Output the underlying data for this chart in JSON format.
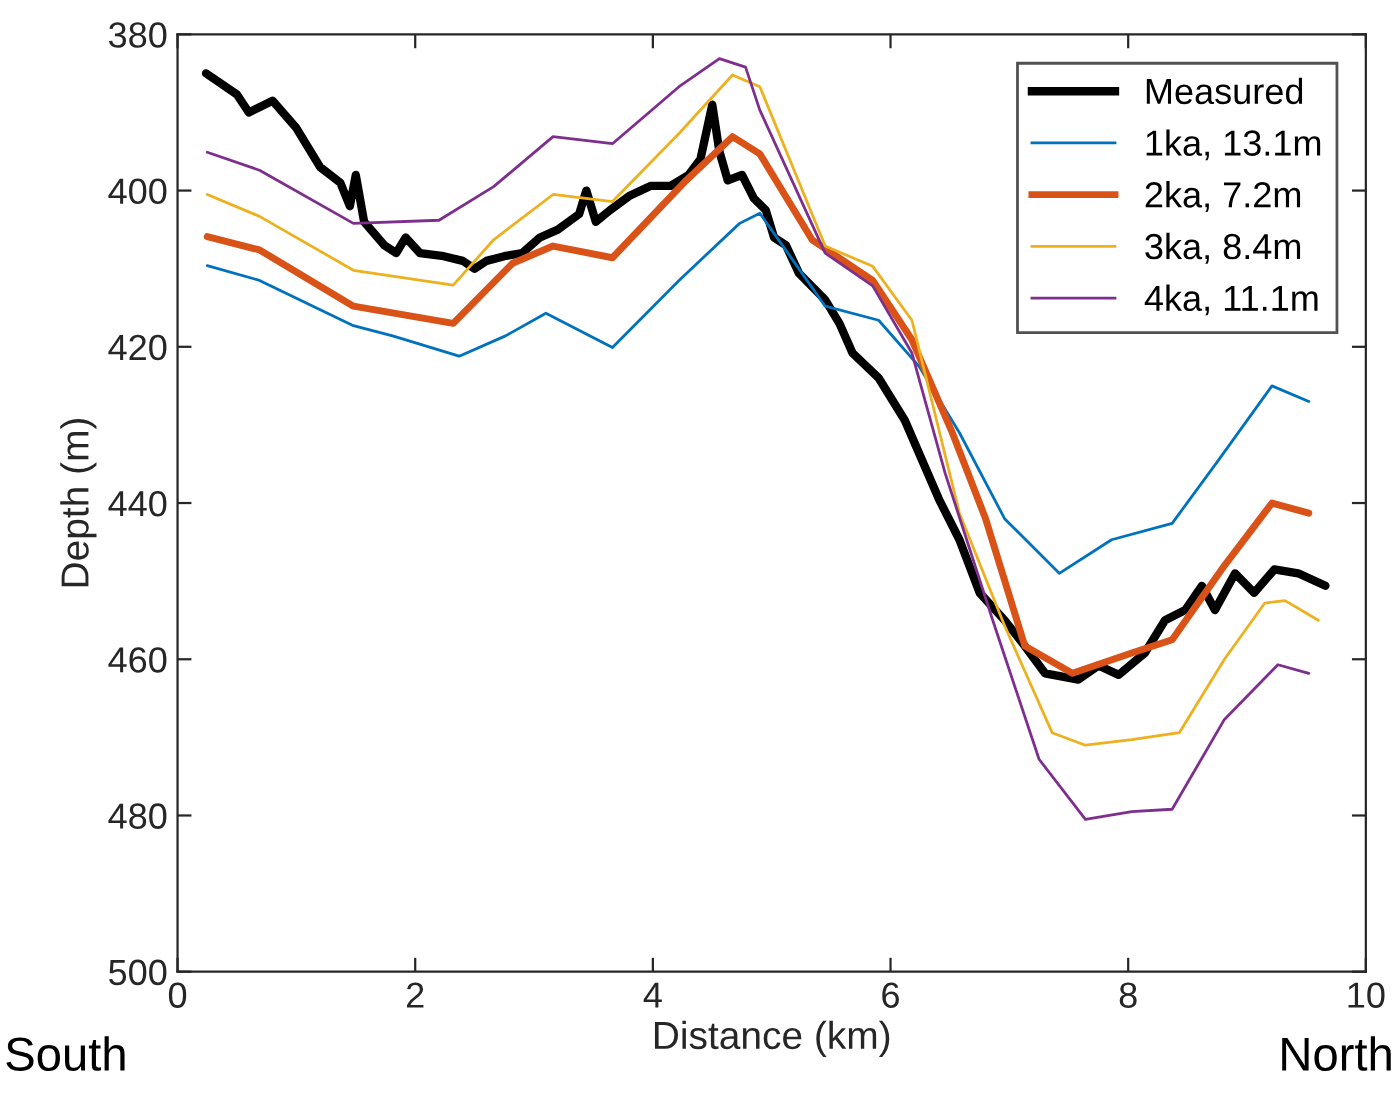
{
  "chart_data": {
    "type": "line",
    "xlabel": "Distance (km)",
    "ylabel": "Depth (m)",
    "xlim": [
      0,
      10
    ],
    "ylim": [
      500,
      380
    ],
    "xticks": [
      0,
      2,
      4,
      6,
      8,
      10
    ],
    "yticks": [
      380,
      400,
      420,
      440,
      460,
      480,
      500
    ],
    "grid": false,
    "legend": "top right",
    "annotations": [
      "South",
      "North"
    ],
    "series": [
      {
        "name": "Measured",
        "color": "#000000",
        "x": [
          0.24,
          0.5,
          0.6,
          0.8,
          1.0,
          1.2,
          1.37,
          1.45,
          1.5,
          1.57,
          1.74,
          1.84,
          1.92,
          2.04,
          2.24,
          2.4,
          2.5,
          2.6,
          2.75,
          2.9,
          3.05,
          3.2,
          3.38,
          3.44,
          3.52,
          3.64,
          3.8,
          3.98,
          4.15,
          4.3,
          4.4,
          4.5,
          4.56,
          4.63,
          4.75,
          4.85,
          4.95,
          5.02,
          5.12,
          5.23,
          5.45,
          5.57,
          5.68,
          5.9,
          6.12,
          6.41,
          6.58,
          6.75,
          6.96,
          7.13,
          7.3,
          7.58,
          7.75,
          7.92,
          8.14,
          8.31,
          8.48,
          8.62,
          8.73,
          8.9,
          9.06,
          9.23,
          9.43,
          9.66
        ],
        "values": [
          385,
          387.7,
          390,
          388.5,
          392,
          397,
          399,
          402,
          398,
          404,
          407,
          408,
          406,
          408,
          408.4,
          409,
          410,
          409,
          408.4,
          408,
          406,
          405,
          403,
          400,
          404,
          402.5,
          400.7,
          399.4,
          399.4,
          398,
          396,
          389,
          395,
          398.7,
          398,
          401,
          402.5,
          406,
          407,
          410.6,
          414,
          417,
          420.8,
          424,
          429.4,
          439.6,
          444.7,
          451.5,
          455,
          458.3,
          461.8,
          462.6,
          460.8,
          462,
          459.2,
          455,
          453.7,
          450.6,
          453.7,
          449,
          451.5,
          448.5,
          449,
          450.6
        ]
      },
      {
        "name": "1ka, 13.1m",
        "color": "#0072bd",
        "x": [
          0.25,
          0.69,
          1.48,
          1.81,
          2.37,
          2.76,
          3.1,
          3.66,
          4.22,
          4.73,
          4.9,
          5.45,
          5.9,
          6.24,
          6.58,
          6.96,
          7.42,
          7.86,
          8.37,
          8.76,
          9.21,
          9.52
        ],
        "values": [
          409.6,
          411.5,
          417.3,
          418.6,
          421.2,
          418.6,
          415.7,
          420.1,
          411.5,
          404.2,
          402.9,
          414.8,
          416.6,
          422.5,
          431,
          442,
          449,
          444.7,
          442.6,
          434.5,
          425,
          427
        ]
      },
      {
        "name": "2ka, 7.2m",
        "color": "#d95319",
        "x": [
          0.25,
          0.69,
          1.48,
          2.32,
          2.82,
          3.16,
          3.66,
          4.28,
          4.67,
          4.9,
          5.34,
          5.85,
          6.18,
          6.52,
          6.8,
          7.13,
          7.53,
          8.03,
          8.37,
          8.81,
          9.21,
          9.52
        ],
        "values": [
          405.9,
          407.6,
          414.8,
          417,
          409.3,
          407.1,
          408.6,
          398.7,
          393.1,
          395.3,
          406.3,
          411.5,
          419.1,
          431,
          442,
          458.3,
          461.8,
          459.2,
          457.5,
          448,
          440,
          441.3
        ]
      },
      {
        "name": "3ka, 8.4m",
        "color": "#edb120",
        "x": [
          0.25,
          0.69,
          1.48,
          2.32,
          2.66,
          3.16,
          3.66,
          4.22,
          4.67,
          4.9,
          5.45,
          5.85,
          6.18,
          6.58,
          6.96,
          7.36,
          7.64,
          8.03,
          8.43,
          8.81,
          9.15,
          9.32,
          9.6
        ],
        "values": [
          400.5,
          403.3,
          410.2,
          412.1,
          406.3,
          400.5,
          401.4,
          392.7,
          385.2,
          386.7,
          407.1,
          409.7,
          416.6,
          441.3,
          455.7,
          469.4,
          471,
          470.3,
          469.4,
          460,
          452.8,
          452.5,
          455
        ]
      },
      {
        "name": "4ka, 11.1m",
        "color": "#7e2f8e",
        "x": [
          0.25,
          0.69,
          1.48,
          2.2,
          2.66,
          3.16,
          3.66,
          4.22,
          4.56,
          4.78,
          4.9,
          5.45,
          5.85,
          6.18,
          6.46,
          6.86,
          7.25,
          7.64,
          8.03,
          8.37,
          8.81,
          9.26,
          9.52
        ],
        "values": [
          395.1,
          397.4,
          404.2,
          403.8,
          399.5,
          393.1,
          394,
          386.7,
          383.1,
          384.2,
          389.7,
          408,
          412.2,
          420.8,
          436.2,
          455,
          472.8,
          480.5,
          479.5,
          479.2,
          467.7,
          460.7,
          461.8
        ]
      }
    ]
  }
}
